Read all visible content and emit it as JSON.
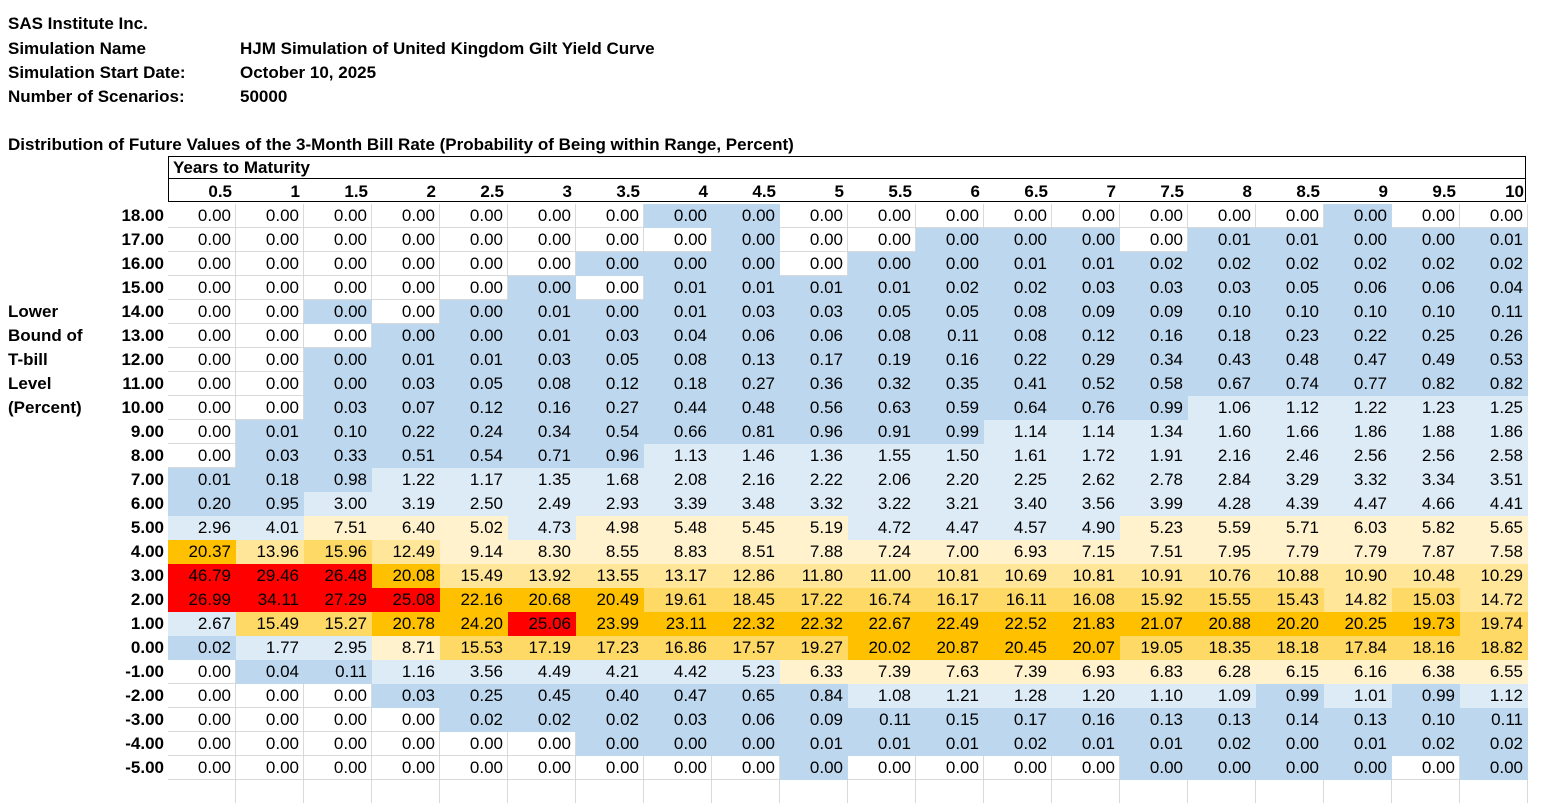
{
  "header": {
    "company": "SAS Institute Inc.",
    "fields": [
      {
        "label": "Simulation Name",
        "value": "HJM Simulation of United Kingdom Gilt Yield Curve"
      },
      {
        "label": "Simulation Start Date:",
        "value": "October 10, 2025"
      },
      {
        "label": "Number of Scenarios:",
        "value": "50000"
      }
    ]
  },
  "table": {
    "title": "Distribution of Future Values of the 3-Month Bill Rate (Probability of Being within Range, Percent)",
    "column_group_label": "Years to Maturity",
    "row_axis_label": [
      "Lower",
      "Bound of",
      "T-bill",
      "Level",
      "(Percent)"
    ],
    "columns": [
      "0.5",
      "1",
      "1.5",
      "2",
      "2.5",
      "3",
      "3.5",
      "4",
      "4.5",
      "5",
      "5.5",
      "6",
      "6.5",
      "7",
      "7.5",
      "8",
      "8.5",
      "9",
      "9.5",
      "10"
    ],
    "color_legend": {
      "w": "#ffffff",
      "b": "#bdd7ee",
      "l": "#ddebf7",
      "y": "#fff2cc",
      "g": "#ffe699",
      "h": "#ffd966",
      "o": "#ffc000",
      "r": "#ff0000"
    },
    "rows": [
      {
        "bound": "18.00",
        "values": [
          "0.00",
          "0.00",
          "0.00",
          "0.00",
          "0.00",
          "0.00",
          "0.00",
          "0.00",
          "0.00",
          "0.00",
          "0.00",
          "0.00",
          "0.00",
          "0.00",
          "0.00",
          "0.00",
          "0.00",
          "0.00",
          "0.00",
          "0.00"
        ],
        "colors": "wwwwwwwbbwwwwwwwwbww"
      },
      {
        "bound": "17.00",
        "values": [
          "0.00",
          "0.00",
          "0.00",
          "0.00",
          "0.00",
          "0.00",
          "0.00",
          "0.00",
          "0.00",
          "0.00",
          "0.00",
          "0.00",
          "0.00",
          "0.00",
          "0.00",
          "0.01",
          "0.01",
          "0.00",
          "0.00",
          "0.01"
        ],
        "colors": "wwwwwwwwbwwbbbwbbbbb"
      },
      {
        "bound": "16.00",
        "values": [
          "0.00",
          "0.00",
          "0.00",
          "0.00",
          "0.00",
          "0.00",
          "0.00",
          "0.00",
          "0.00",
          "0.00",
          "0.00",
          "0.00",
          "0.01",
          "0.01",
          "0.02",
          "0.02",
          "0.02",
          "0.02",
          "0.02",
          "0.02"
        ],
        "colors": "wwwwwwbbbwbbbbbbbbbb"
      },
      {
        "bound": "15.00",
        "values": [
          "0.00",
          "0.00",
          "0.00",
          "0.00",
          "0.00",
          "0.00",
          "0.00",
          "0.01",
          "0.01",
          "0.01",
          "0.01",
          "0.02",
          "0.02",
          "0.03",
          "0.03",
          "0.03",
          "0.05",
          "0.06",
          "0.06",
          "0.04"
        ],
        "colors": "wwwwwbwbbbbbbbbbbbbb"
      },
      {
        "bound": "14.00",
        "values": [
          "0.00",
          "0.00",
          "0.00",
          "0.00",
          "0.00",
          "0.01",
          "0.00",
          "0.01",
          "0.03",
          "0.03",
          "0.05",
          "0.05",
          "0.08",
          "0.09",
          "0.09",
          "0.10",
          "0.10",
          "0.10",
          "0.10",
          "0.11"
        ],
        "colors": "wwbwbbbbbbbbbbbbbbbb"
      },
      {
        "bound": "13.00",
        "values": [
          "0.00",
          "0.00",
          "0.00",
          "0.00",
          "0.00",
          "0.01",
          "0.03",
          "0.04",
          "0.06",
          "0.06",
          "0.08",
          "0.11",
          "0.08",
          "0.12",
          "0.16",
          "0.18",
          "0.23",
          "0.22",
          "0.25",
          "0.26"
        ],
        "colors": "wwwbbbbbbbbbbbbbbbbb"
      },
      {
        "bound": "12.00",
        "values": [
          "0.00",
          "0.00",
          "0.00",
          "0.01",
          "0.01",
          "0.03",
          "0.05",
          "0.08",
          "0.13",
          "0.17",
          "0.19",
          "0.16",
          "0.22",
          "0.29",
          "0.34",
          "0.43",
          "0.48",
          "0.47",
          "0.49",
          "0.53"
        ],
        "colors": "wwbbbbbbbbbbbbbbbbbb"
      },
      {
        "bound": "11.00",
        "values": [
          "0.00",
          "0.00",
          "0.00",
          "0.03",
          "0.05",
          "0.08",
          "0.12",
          "0.18",
          "0.27",
          "0.36",
          "0.32",
          "0.35",
          "0.41",
          "0.52",
          "0.58",
          "0.67",
          "0.74",
          "0.77",
          "0.82",
          "0.82"
        ],
        "colors": "wwbbbbbbbbbbbbbbbbbb"
      },
      {
        "bound": "10.00",
        "values": [
          "0.00",
          "0.00",
          "0.03",
          "0.07",
          "0.12",
          "0.16",
          "0.27",
          "0.44",
          "0.48",
          "0.56",
          "0.63",
          "0.59",
          "0.64",
          "0.76",
          "0.99",
          "1.06",
          "1.12",
          "1.22",
          "1.23",
          "1.25"
        ],
        "colors": "wwbbbbbbbbbbbbblllll"
      },
      {
        "bound": "9.00",
        "values": [
          "0.00",
          "0.01",
          "0.10",
          "0.22",
          "0.24",
          "0.34",
          "0.54",
          "0.66",
          "0.81",
          "0.96",
          "0.91",
          "0.99",
          "1.14",
          "1.14",
          "1.34",
          "1.60",
          "1.66",
          "1.86",
          "1.88",
          "1.86"
        ],
        "colors": "wbbbbbbbbbbbllllllll"
      },
      {
        "bound": "8.00",
        "values": [
          "0.00",
          "0.03",
          "0.33",
          "0.51",
          "0.54",
          "0.71",
          "0.96",
          "1.13",
          "1.46",
          "1.36",
          "1.55",
          "1.50",
          "1.61",
          "1.72",
          "1.91",
          "2.16",
          "2.46",
          "2.56",
          "2.56",
          "2.58"
        ],
        "colors": "wbbbbbblllllllllllll"
      },
      {
        "bound": "7.00",
        "values": [
          "0.01",
          "0.18",
          "0.98",
          "1.22",
          "1.17",
          "1.35",
          "1.68",
          "2.08",
          "2.16",
          "2.22",
          "2.06",
          "2.20",
          "2.25",
          "2.62",
          "2.78",
          "2.84",
          "3.29",
          "3.32",
          "3.34",
          "3.51"
        ],
        "colors": "bbblllllllllllllllll"
      },
      {
        "bound": "6.00",
        "values": [
          "0.20",
          "0.95",
          "3.00",
          "3.19",
          "2.50",
          "2.49",
          "2.93",
          "3.39",
          "3.48",
          "3.32",
          "3.22",
          "3.21",
          "3.40",
          "3.56",
          "3.99",
          "4.28",
          "4.39",
          "4.47",
          "4.66",
          "4.41"
        ],
        "colors": "bbllllllllllllllllll"
      },
      {
        "bound": "5.00",
        "values": [
          "2.96",
          "4.01",
          "7.51",
          "6.40",
          "5.02",
          "4.73",
          "4.98",
          "5.48",
          "5.45",
          "5.19",
          "4.72",
          "4.47",
          "4.57",
          "4.90",
          "5.23",
          "5.59",
          "5.71",
          "6.03",
          "5.82",
          "5.65"
        ],
        "colors": "llyyylyyyyllllyyyyyy"
      },
      {
        "bound": "4.00",
        "values": [
          "20.37",
          "13.96",
          "15.96",
          "12.49",
          "9.14",
          "8.30",
          "8.55",
          "8.83",
          "8.51",
          "7.88",
          "7.24",
          "7.00",
          "6.93",
          "7.15",
          "7.51",
          "7.95",
          "7.79",
          "7.79",
          "7.87",
          "7.58"
        ],
        "colors": "oghgyyyyyyyyyyyyyyyy"
      },
      {
        "bound": "3.00",
        "values": [
          "46.79",
          "29.46",
          "26.48",
          "20.08",
          "15.49",
          "13.92",
          "13.55",
          "13.17",
          "12.86",
          "11.80",
          "11.00",
          "10.81",
          "10.69",
          "10.81",
          "10.91",
          "10.76",
          "10.88",
          "10.90",
          "10.48",
          "10.29"
        ],
        "colors": "rrroggggggggggggggg g"
      },
      {
        "bound": "2.00",
        "values": [
          "26.99",
          "34.11",
          "27.29",
          "25.08",
          "22.16",
          "20.68",
          "20.49",
          "19.61",
          "18.45",
          "17.22",
          "16.74",
          "16.17",
          "16.11",
          "16.08",
          "15.92",
          "15.55",
          "15.43",
          "14.82",
          "15.03",
          "14.72"
        ],
        "colors": "rrrrooohhhhhhhhhhghg"
      },
      {
        "bound": "1.00",
        "values": [
          "2.67",
          "15.49",
          "15.27",
          "20.78",
          "24.20",
          "25.06",
          "23.99",
          "23.11",
          "22.32",
          "22.32",
          "22.67",
          "22.49",
          "22.52",
          "21.83",
          "21.07",
          "20.88",
          "20.20",
          "20.25",
          "19.73",
          "19.74"
        ],
        "colors": "lhhoorooooooooooooo hh"
      },
      {
        "bound": "0.00",
        "values": [
          "0.02",
          "1.77",
          "2.95",
          "8.71",
          "15.53",
          "17.19",
          "17.23",
          "16.86",
          "17.57",
          "19.27",
          "20.02",
          "20.87",
          "20.45",
          "20.07",
          "19.05",
          "18.35",
          "18.18",
          "17.84",
          "18.16",
          "18.82"
        ],
        "colors": "bllyhhhhhhoooohhhhhh"
      },
      {
        "bound": "-1.00",
        "values": [
          "0.00",
          "0.04",
          "0.11",
          "1.16",
          "3.56",
          "4.49",
          "4.21",
          "4.42",
          "5.23",
          "6.33",
          "7.39",
          "7.63",
          "7.39",
          "6.93",
          "6.83",
          "6.28",
          "6.15",
          "6.16",
          "6.38",
          "6.55"
        ],
        "colors": "wbbllllllyyyyyyyyyyy"
      },
      {
        "bound": "-2.00",
        "values": [
          "0.00",
          "0.00",
          "0.00",
          "0.03",
          "0.25",
          "0.45",
          "0.40",
          "0.47",
          "0.65",
          "0.84",
          "1.08",
          "1.21",
          "1.28",
          "1.20",
          "1.10",
          "1.09",
          "0.99",
          "1.01",
          "0.99",
          "1.12"
        ],
        "colors": "wwwbbbbbbbllllllblbl"
      },
      {
        "bound": "-3.00",
        "values": [
          "0.00",
          "0.00",
          "0.00",
          "0.00",
          "0.02",
          "0.02",
          "0.02",
          "0.03",
          "0.06",
          "0.09",
          "0.11",
          "0.15",
          "0.17",
          "0.16",
          "0.13",
          "0.13",
          "0.14",
          "0.13",
          "0.10",
          "0.11"
        ],
        "colors": "wwwwbbbbbbbbbbbbbbbb"
      },
      {
        "bound": "-4.00",
        "values": [
          "0.00",
          "0.00",
          "0.00",
          "0.00",
          "0.00",
          "0.00",
          "0.00",
          "0.00",
          "0.00",
          "0.01",
          "0.01",
          "0.01",
          "0.02",
          "0.01",
          "0.01",
          "0.02",
          "0.00",
          "0.01",
          "0.02",
          "0.02"
        ],
        "colors": "wwwwwwbbbbbbbbbbbbbb"
      },
      {
        "bound": "-5.00",
        "values": [
          "0.00",
          "0.00",
          "0.00",
          "0.00",
          "0.00",
          "0.00",
          "0.00",
          "0.00",
          "0.00",
          "0.00",
          "0.00",
          "0.00",
          "0.00",
          "0.00",
          "0.00",
          "0.00",
          "0.00",
          "0.00",
          "0.00",
          "0.00"
        ],
        "colors": "wwwwwwwwwbwwwwbbbbwb"
      }
    ]
  }
}
